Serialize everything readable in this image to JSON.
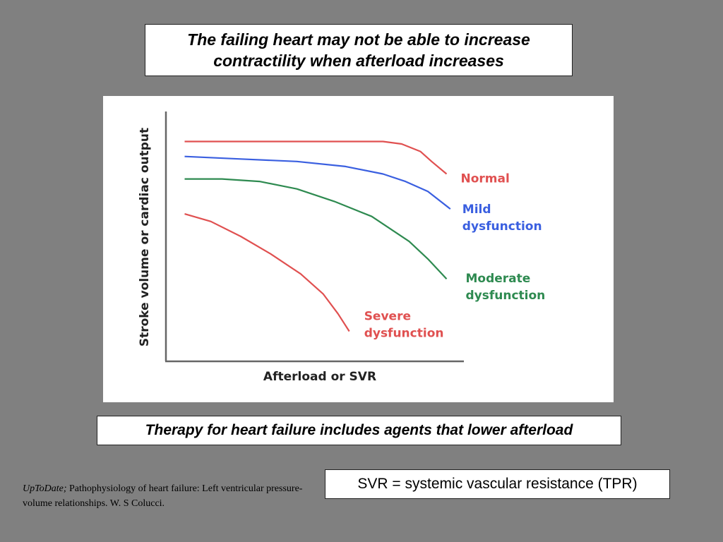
{
  "title": {
    "line1": "The failing heart may not be able to increase",
    "line2": "contractility when afterload increases"
  },
  "therapy_note": "Therapy for heart failure includes agents that lower afterload",
  "svr_note": "SVR = systemic vascular resistance (TPR)",
  "citation": {
    "source": "UpToDate;",
    "text": " Pathophysiology of heart failure: Left ventricular pressure-volume relationships. W. S Colucci."
  },
  "chart_data": {
    "type": "line",
    "xlabel": "Afterload or SVR",
    "ylabel": "Stroke volume or cardiac output",
    "xlim": [
      0,
      100
    ],
    "ylim": [
      0,
      100
    ],
    "grid": false,
    "ticks": false,
    "series": [
      {
        "name_lines": [
          "Normal"
        ],
        "color": "#e05050",
        "points": [
          [
            5,
            88
          ],
          [
            15,
            88
          ],
          [
            30,
            88
          ],
          [
            45,
            88
          ],
          [
            58,
            88
          ],
          [
            63,
            87
          ],
          [
            68,
            84
          ],
          [
            71,
            80
          ],
          [
            75,
            75
          ]
        ]
      },
      {
        "name_lines": [
          "Mild",
          "dysfunction"
        ],
        "color": "#3a5fe0",
        "points": [
          [
            5,
            82
          ],
          [
            20,
            81
          ],
          [
            35,
            80
          ],
          [
            48,
            78
          ],
          [
            58,
            75
          ],
          [
            64,
            72
          ],
          [
            70,
            68
          ],
          [
            76,
            61
          ]
        ]
      },
      {
        "name_lines": [
          "Moderate",
          "dysfunction"
        ],
        "color": "#2e8a50",
        "points": [
          [
            5,
            73
          ],
          [
            15,
            73
          ],
          [
            25,
            72
          ],
          [
            35,
            69
          ],
          [
            45,
            64
          ],
          [
            55,
            58
          ],
          [
            65,
            48
          ],
          [
            70,
            41
          ],
          [
            75,
            33
          ]
        ]
      },
      {
        "name_lines": [
          "Severe",
          "dysfunction"
        ],
        "color": "#e05050",
        "points": [
          [
            5,
            59
          ],
          [
            12,
            56
          ],
          [
            20,
            50
          ],
          [
            28,
            43
          ],
          [
            36,
            35
          ],
          [
            42,
            27
          ],
          [
            46,
            19
          ],
          [
            49,
            12
          ]
        ]
      }
    ]
  }
}
